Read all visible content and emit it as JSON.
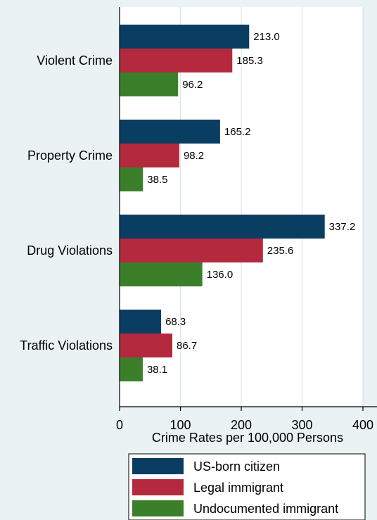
{
  "chart_data": {
    "type": "bar",
    "orientation": "horizontal",
    "categories": [
      "Violent Crime",
      "Property Crime",
      "Drug Violations",
      "Traffic Violations"
    ],
    "series": [
      {
        "name": "US-born citizen",
        "color": "#0a3d62",
        "values": [
          213.0,
          165.2,
          337.2,
          68.3
        ]
      },
      {
        "name": "Legal immigrant",
        "color": "#b5293e",
        "values": [
          185.3,
          98.2,
          235.6,
          86.7
        ]
      },
      {
        "name": "Undocumented immigrant",
        "color": "#3c7f2b",
        "values": [
          96.2,
          38.5,
          136.0,
          38.1
        ]
      }
    ],
    "value_labels": [
      [
        "213.0",
        "165.2",
        "337.2",
        "68.3"
      ],
      [
        "185.3",
        "98.2",
        "235.6",
        "86.7"
      ],
      [
        "96.2",
        "38.5",
        "136.0",
        "38.1"
      ]
    ],
    "xlabel": "Crime Rates per 100,000 Persons",
    "xlim": [
      0,
      400
    ],
    "xticks": [
      0,
      100,
      200,
      300,
      400
    ],
    "xtick_labels": [
      "0",
      "100",
      "200",
      "300",
      "400"
    ],
    "grid": "vertical",
    "legend_position": "bottom"
  },
  "colors": {
    "background": "#eaf2f3",
    "plot_background": "#ffffff",
    "grid": "#d8e6e9"
  }
}
